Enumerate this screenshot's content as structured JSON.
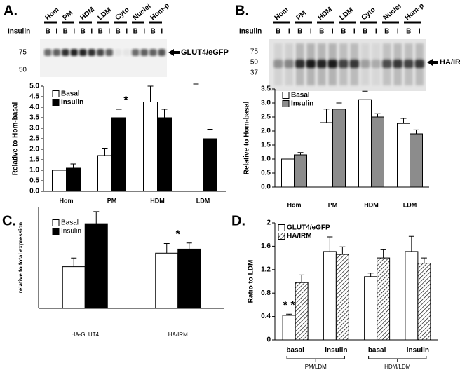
{
  "blots": [
    {
      "panel_label": "A.",
      "lanes": [
        "Hom",
        "PM",
        "HDM",
        "LDM",
        "Cyto",
        "Nuclei",
        "Hom-p"
      ],
      "condition_label": "Insulin",
      "conditions": [
        "B",
        "I",
        "B",
        "I",
        "B",
        "I",
        "B",
        "I",
        "B",
        "I",
        "B",
        "I",
        "B",
        "I"
      ],
      "markers": [
        75,
        50
      ],
      "band_label": "GLUT4/eGFP"
    },
    {
      "panel_label": "B.",
      "lanes": [
        "Hom",
        "PM",
        "HDM",
        "LDM",
        "Cyto",
        "Nuclei",
        "Hom-p"
      ],
      "condition_label": "Insulin",
      "conditions": [
        "B",
        "I",
        "B",
        "I",
        "B",
        "I",
        "B",
        "I",
        "B",
        "I",
        "B",
        "I",
        "B",
        "I"
      ],
      "markers": [
        75,
        50,
        37
      ],
      "band_label": "HA/IRM"
    }
  ],
  "chart_data": [
    {
      "type": "bar",
      "y_label": "Relative to Hom-basal",
      "categories": [
        "Hom",
        "PM",
        "HDM",
        "LDM"
      ],
      "series": [
        {
          "name": "Basal",
          "color": "#ffffff",
          "values": [
            1.0,
            1.7,
            4.25,
            4.15
          ],
          "errors": [
            0,
            0.35,
            0.75,
            0.95
          ]
        },
        {
          "name": "Insulin",
          "color": "#000000",
          "values": [
            1.1,
            3.5,
            3.5,
            2.5
          ],
          "errors": [
            0.2,
            0.4,
            0.4,
            0.45
          ]
        }
      ],
      "ylim": [
        0,
        5
      ],
      "yticks": [
        {
          "value": 0,
          "label": "0.0"
        },
        {
          "value": 0.5,
          "label": "0.5"
        },
        {
          "value": 1,
          "label": "1.0"
        },
        {
          "value": 1.5,
          "label": "1.5"
        },
        {
          "value": 2,
          "label": "2.0"
        },
        {
          "value": 2.5,
          "label": "2.5"
        },
        {
          "value": 3,
          "label": "3.0"
        },
        {
          "value": 3.5,
          "label": "3.5"
        },
        {
          "value": 4,
          "label": "4.0"
        },
        {
          "value": 4.5,
          "label": "4.5"
        },
        {
          "value": 5,
          "label": "5.0"
        }
      ],
      "annotations": [
        "*"
      ]
    },
    {
      "type": "bar",
      "y_label": "Relative to Hom-basal",
      "categories": [
        "Hom",
        "PM",
        "HDM",
        "LDM"
      ],
      "series": [
        {
          "name": "Basal",
          "color": "#ffffff",
          "values": [
            1.0,
            2.3,
            3.12,
            2.27
          ],
          "errors": [
            0,
            0.48,
            0.3,
            0.18
          ]
        },
        {
          "name": "Insulin",
          "color": "#8c8c8c",
          "values": [
            1.15,
            2.78,
            2.5,
            1.9
          ],
          "errors": [
            0.08,
            0.22,
            0.12,
            0.14
          ]
        }
      ],
      "ylim": [
        0,
        3.5
      ],
      "yticks": [
        {
          "value": 0,
          "label": "0.0"
        },
        {
          "value": 0.5,
          "label": "0.5"
        },
        {
          "value": 1,
          "label": "1.0"
        },
        {
          "value": 1.5,
          "label": "1.5"
        },
        {
          "value": 2,
          "label": "2.0"
        },
        {
          "value": 2.5,
          "label": "2.5"
        },
        {
          "value": 3,
          "label": "3.0"
        },
        {
          "value": 3.5,
          "label": "3.5"
        }
      ]
    },
    {
      "type": "bar",
      "panel_label": "C.",
      "y_label": "relative to total expression",
      "categories": [
        "HA-GLUT4",
        "HA/IRM"
      ],
      "series": [
        {
          "name": "Basal",
          "color": "#ffffff",
          "values": [
            1.72,
            2.28
          ],
          "errors": [
            0.36,
            0.4
          ]
        },
        {
          "name": "Insulin",
          "color": "#000000",
          "values": [
            3.5,
            2.45
          ],
          "errors": [
            0.5,
            0.25
          ]
        }
      ],
      "ylim": [
        0,
        4.2
      ],
      "annotations": [
        "*"
      ]
    },
    {
      "type": "bar",
      "panel_label": "D.",
      "y_label": "Ratio to LDM",
      "categories": [
        "basal",
        "insulin",
        "basal",
        "insulin"
      ],
      "group_labels": [
        "PM/LDM",
        "HDM/LDM"
      ],
      "series": [
        {
          "name": "GLUT4/eGFP",
          "color": "#ffffff",
          "values": [
            0.42,
            1.51,
            1.08,
            1.51
          ],
          "errors": [
            0.02,
            0.25,
            0.06,
            0.26
          ]
        },
        {
          "name": "HA/IRM",
          "color": "#ffffff",
          "hatch": true,
          "values": [
            0.98,
            1.46,
            1.4,
            1.31
          ],
          "errors": [
            0.13,
            0.13,
            0.14,
            0.09
          ]
        }
      ],
      "ylim": [
        0,
        2
      ],
      "yticks": [
        0,
        0.4,
        0.8,
        1.2,
        1.6,
        2
      ],
      "annotations": [
        "* *"
      ]
    }
  ]
}
